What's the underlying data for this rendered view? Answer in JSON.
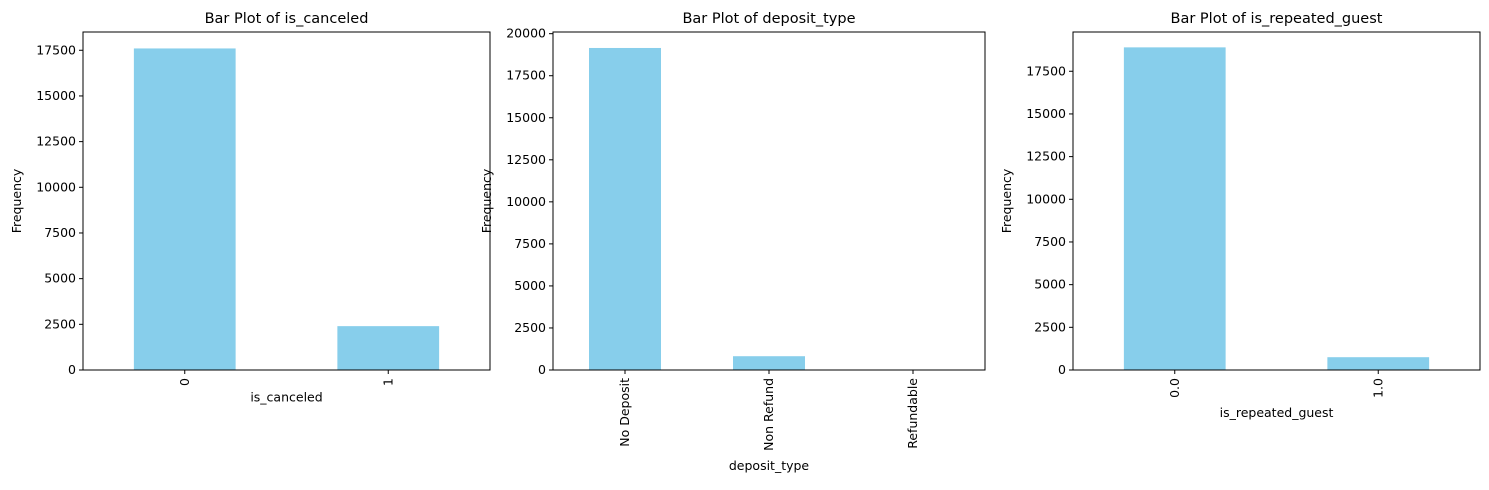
{
  "colors": {
    "bar": "#87ceeb",
    "axis": "#000000",
    "background": "#ffffff"
  },
  "chart_data": [
    {
      "type": "bar",
      "title": "Bar Plot of is_canceled",
      "xlabel": "is_canceled",
      "ylabel": "Frequency",
      "categories": [
        "0",
        "1"
      ],
      "values": [
        17600,
        2400
      ],
      "ylim": [
        0,
        18500
      ],
      "yticks": [
        0,
        2500,
        5000,
        7500,
        10000,
        12500,
        15000,
        17500
      ],
      "ytick_labels": [
        "0",
        "2500",
        "5000",
        "7500",
        "10000",
        "12500",
        "15000",
        "17500"
      ],
      "grid": false,
      "legend": false
    },
    {
      "type": "bar",
      "title": "Bar Plot of deposit_type",
      "xlabel": "deposit_type",
      "ylabel": "Frequency",
      "categories": [
        "No Deposit",
        "Non Refund",
        "Refundable"
      ],
      "values": [
        19150,
        820,
        30
      ],
      "ylim": [
        0,
        20100
      ],
      "yticks": [
        0,
        2500,
        5000,
        7500,
        10000,
        12500,
        15000,
        17500,
        20000
      ],
      "ytick_labels": [
        "0",
        "2500",
        "5000",
        "7500",
        "10000",
        "12500",
        "15000",
        "17500",
        "20000"
      ],
      "grid": false,
      "legend": false
    },
    {
      "type": "bar",
      "title": "Bar Plot of is_repeated_guest",
      "xlabel": "is_repeated_guest",
      "ylabel": "Frequency",
      "categories": [
        "0.0",
        "1.0"
      ],
      "values": [
        18900,
        750
      ],
      "ylim": [
        0,
        19800
      ],
      "yticks": [
        0,
        2500,
        5000,
        7500,
        10000,
        12500,
        15000,
        17500
      ],
      "ytick_labels": [
        "0",
        "2500",
        "5000",
        "7500",
        "10000",
        "12500",
        "15000",
        "17500"
      ],
      "grid": false,
      "legend": false
    }
  ]
}
